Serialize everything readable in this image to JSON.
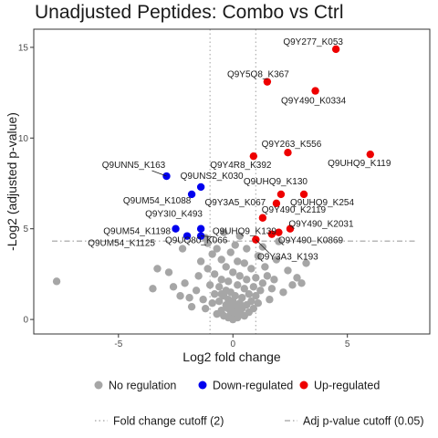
{
  "chart_data": {
    "type": "scatter",
    "title": "Unadjusted Peptides: Combo vs Ctrl",
    "xlabel": "Log2 fold change",
    "ylabel": "-Log2 (adjusted p-value)",
    "xlim": [
      -8.7,
      8.6
    ],
    "ylim": [
      -0.8,
      16.0
    ],
    "xticks": [
      -5,
      0,
      5
    ],
    "yticks": [
      0,
      5,
      10,
      15
    ],
    "grid": false,
    "fold_change_cutoff": [
      -1,
      1
    ],
    "pvalue_cutoff": 4.32,
    "colors": {
      "none": "#a6a6a6",
      "down": "#0000ee",
      "up": "#ee0000",
      "frame": "#333333"
    },
    "legend": {
      "placement": "bottom",
      "groups": [
        {
          "key": "none",
          "label": "No regulation"
        },
        {
          "key": "down",
          "label": "Down-regulated"
        },
        {
          "key": "up",
          "label": "Up-regulated"
        }
      ],
      "lines": [
        {
          "key": "fc",
          "label": "Fold change cutoff (2)"
        },
        {
          "key": "pv",
          "label": "Adj p-value cutoff (0.05)"
        }
      ]
    },
    "significant_points": [
      {
        "label": "Q9Y277_K053",
        "x": 4.5,
        "y": 14.9,
        "group": "up"
      },
      {
        "label": "Q9Y5Q8_K367",
        "x": 1.5,
        "y": 13.1,
        "group": "up"
      },
      {
        "label": "Q9Y490_K0334",
        "x": 3.6,
        "y": 12.6,
        "group": "up"
      },
      {
        "label": "Q9Y263_K556",
        "x": 2.4,
        "y": 9.2,
        "group": "up"
      },
      {
        "label": "Q9UHQ9_K119",
        "x": 6.0,
        "y": 9.1,
        "group": "up"
      },
      {
        "label": "Q9Y4R8_K392",
        "x": 0.9,
        "y": 9.0,
        "group": "up"
      },
      {
        "label": "Q9UHQ9_K130",
        "x": 2.1,
        "y": 6.9,
        "group": "up"
      },
      {
        "label": "Q9UHQ9_K254",
        "x": 3.1,
        "y": 6.9,
        "group": "up"
      },
      {
        "label": "Q9Y3A5_K067",
        "x": 1.3,
        "y": 5.6,
        "group": "up"
      },
      {
        "label": "Q9Y490_K2119",
        "x": 1.9,
        "y": 6.4,
        "group": "up"
      },
      {
        "label": "Q9Y490_K2031",
        "x": 2.5,
        "y": 5.0,
        "group": "up"
      },
      {
        "label": "Q9UHQ9_K139",
        "x": 1.7,
        "y": 4.7,
        "group": "up"
      },
      {
        "label": "Q9Y490_K0869",
        "x": 2.0,
        "y": 4.8,
        "group": "up"
      },
      {
        "label": "Q9Y3A3_K193",
        "x": 1.0,
        "y": 4.4,
        "group": "up"
      },
      {
        "label": "Q9UNN5_K163",
        "x": -2.9,
        "y": 7.9,
        "group": "down"
      },
      {
        "label": "Q9UNS2_K030",
        "x": -1.4,
        "y": 7.3,
        "group": "down"
      },
      {
        "label": "Q9UM54_K1088",
        "x": -1.8,
        "y": 6.9,
        "group": "down"
      },
      {
        "label": "Q9Y3I0_K493",
        "x": -2.5,
        "y": 5.0,
        "group": "down"
      },
      {
        "label": "Q9UM54_K1198",
        "x": -1.4,
        "y": 5.0,
        "group": "down"
      },
      {
        "label": "Q9UM54_K1125",
        "x": -2.0,
        "y": 4.6,
        "group": "down"
      },
      {
        "label": "Q9UQ80_K066",
        "x": -1.4,
        "y": 4.6,
        "group": "down"
      }
    ],
    "background_points": [
      [
        -7.7,
        2.1
      ],
      [
        -3.5,
        1.7
      ],
      [
        -3.3,
        2.8
      ],
      [
        -2.8,
        2.6
      ],
      [
        -2.6,
        1.8
      ],
      [
        -2.3,
        1.3
      ],
      [
        -2.1,
        2.0
      ],
      [
        -1.9,
        1.2
      ],
      [
        -1.8,
        0.7
      ],
      [
        -1.6,
        1.6
      ],
      [
        -1.5,
        2.4
      ],
      [
        -1.4,
        3.2
      ],
      [
        -1.3,
        1.1
      ],
      [
        -1.2,
        0.6
      ],
      [
        -1.1,
        2.8
      ],
      [
        -1.1,
        4.2
      ],
      [
        -1.0,
        1.9
      ],
      [
        -0.9,
        0.9
      ],
      [
        -0.9,
        3.6
      ],
      [
        -0.8,
        1.4
      ],
      [
        -0.8,
        2.5
      ],
      [
        -0.7,
        0.3
      ],
      [
        -0.7,
        3.9
      ],
      [
        -0.6,
        1.0
      ],
      [
        -0.6,
        1.8
      ],
      [
        -0.5,
        0.5
      ],
      [
        -0.5,
        2.2
      ],
      [
        -0.5,
        3.3
      ],
      [
        -0.4,
        0.2
      ],
      [
        -0.4,
        1.3
      ],
      [
        -0.4,
        4.8
      ],
      [
        -0.3,
        0.8
      ],
      [
        -0.3,
        1.6
      ],
      [
        -0.3,
        2.9
      ],
      [
        -0.2,
        0.1
      ],
      [
        -0.2,
        0.6
      ],
      [
        -0.2,
        1.1
      ],
      [
        -0.2,
        2.1
      ],
      [
        -0.1,
        0.3
      ],
      [
        -0.1,
        0.9
      ],
      [
        -0.1,
        1.5
      ],
      [
        -0.1,
        3.7
      ],
      [
        0.0,
        0.0
      ],
      [
        0.0,
        0.4
      ],
      [
        0.0,
        1.0
      ],
      [
        0.0,
        2.6
      ],
      [
        0.1,
        0.2
      ],
      [
        0.1,
        0.7
      ],
      [
        0.1,
        1.3
      ],
      [
        0.1,
        4.1
      ],
      [
        0.2,
        0.1
      ],
      [
        0.2,
        0.5
      ],
      [
        0.2,
        1.9
      ],
      [
        0.3,
        0.3
      ],
      [
        0.3,
        0.9
      ],
      [
        0.3,
        2.4
      ],
      [
        0.4,
        0.6
      ],
      [
        0.4,
        1.2
      ],
      [
        0.5,
        0.2
      ],
      [
        0.5,
        1.7
      ],
      [
        0.5,
        3.1
      ],
      [
        0.6,
        0.8
      ],
      [
        0.6,
        2.2
      ],
      [
        0.7,
        0.4
      ],
      [
        0.7,
        1.4
      ],
      [
        0.8,
        1.0
      ],
      [
        0.8,
        2.8
      ],
      [
        0.9,
        0.6
      ],
      [
        0.9,
        1.8
      ],
      [
        1.0,
        1.3
      ],
      [
        1.0,
        2.3
      ],
      [
        1.1,
        0.9
      ],
      [
        1.1,
        3.5
      ],
      [
        1.2,
        1.6
      ],
      [
        1.3,
        2.0
      ],
      [
        1.4,
        2.9
      ],
      [
        1.5,
        2.4
      ],
      [
        1.6,
        1.1
      ],
      [
        1.7,
        1.7
      ],
      [
        1.8,
        2.2
      ],
      [
        1.9,
        3.3
      ],
      [
        2.0,
        4.3
      ],
      [
        2.2,
        1.5
      ],
      [
        2.4,
        2.7
      ],
      [
        2.6,
        1.9
      ],
      [
        2.8,
        2.3
      ],
      [
        3.0,
        2.0
      ],
      [
        3.2,
        3.1
      ],
      [
        -0.5,
        1.4
      ],
      [
        0.3,
        4.6
      ],
      [
        -1.2,
        4.5
      ],
      [
        -2.2,
        3.9
      ],
      [
        1.3,
        4.0
      ],
      [
        0.6,
        3.9
      ],
      [
        0.2,
        3.2
      ]
    ]
  }
}
